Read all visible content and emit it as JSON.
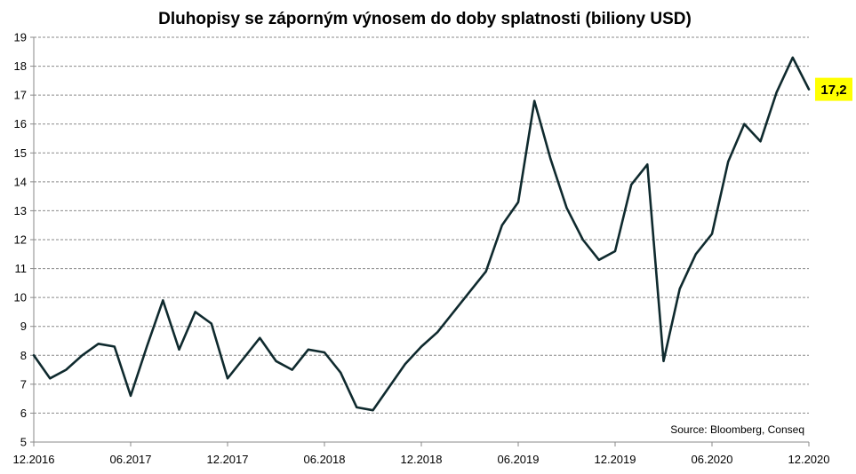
{
  "chart_data": {
    "type": "line",
    "title": "Dluhopisy se záporným výnosem do doby splatnosti (biliony USD)",
    "source": "Source: Bloomberg, Conseq",
    "ylim": [
      5,
      19
    ],
    "y_ticks": [
      "5",
      "6",
      "7",
      "8",
      "9",
      "10",
      "11",
      "12",
      "13",
      "14",
      "15",
      "16",
      "17",
      "18",
      "19"
    ],
    "x_ticks": [
      "12.2016",
      "06.2017",
      "12.2017",
      "06.2018",
      "12.2018",
      "06.2019",
      "12.2019",
      "06.2020",
      "12.2020"
    ],
    "grid": "horizontal dashed",
    "series": [
      {
        "color": "#0f2a2e",
        "x": [
          "12.2016",
          "01.2017",
          "02.2017",
          "03.2017",
          "04.2017",
          "05.2017",
          "06.2017",
          "07.2017",
          "08.2017",
          "09.2017",
          "10.2017",
          "11.2017",
          "12.2017",
          "01.2018",
          "02.2018",
          "03.2018",
          "04.2018",
          "05.2018",
          "06.2018",
          "07.2018",
          "08.2018",
          "09.2018",
          "10.2018",
          "11.2018",
          "12.2018",
          "01.2019",
          "02.2019",
          "03.2019",
          "04.2019",
          "05.2019",
          "06.2019",
          "07.2019",
          "08.2019",
          "09.2019",
          "10.2019",
          "11.2019",
          "12.2019",
          "01.2020",
          "02.2020",
          "03.2020",
          "04.2020",
          "05.2020",
          "06.2020",
          "07.2020",
          "08.2020",
          "09.2020",
          "10.2020",
          "11.2020",
          "12.2020"
        ],
        "values": [
          8.0,
          7.2,
          7.5,
          8.0,
          8.4,
          8.3,
          6.6,
          8.3,
          9.9,
          8.2,
          9.5,
          9.1,
          7.2,
          7.9,
          8.6,
          7.8,
          7.5,
          8.2,
          8.1,
          7.4,
          6.2,
          6.1,
          6.9,
          7.7,
          8.3,
          8.8,
          9.5,
          10.2,
          10.9,
          12.5,
          13.3,
          16.8,
          14.8,
          13.1,
          12.0,
          11.3,
          11.6,
          13.9,
          14.6,
          7.8,
          10.3,
          11.5,
          12.2,
          14.7,
          16.0,
          15.4,
          17.1,
          18.3,
          17.2
        ]
      }
    ],
    "last_value_label": "17,2",
    "last_value_color": "#ffff00"
  }
}
